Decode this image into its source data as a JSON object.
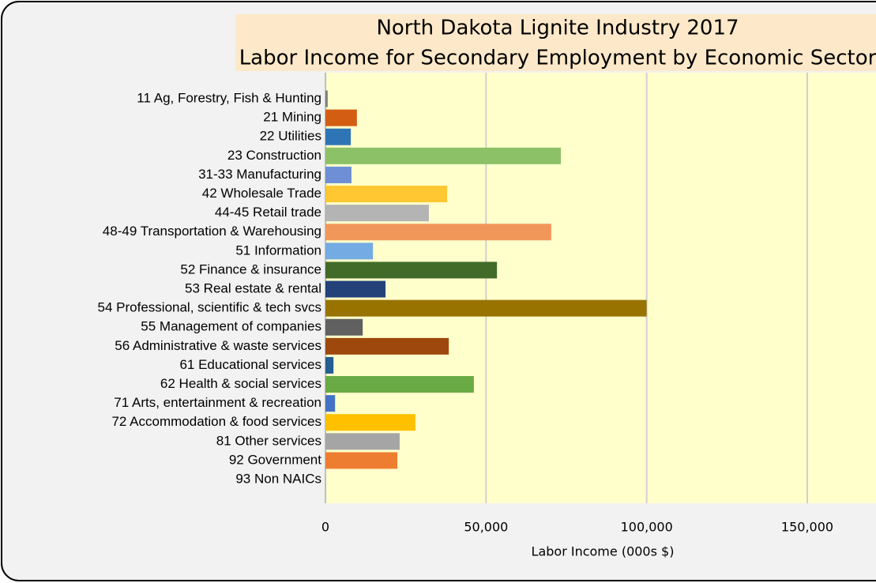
{
  "chart_data": {
    "type": "barh",
    "title": "North Dakota Lignite Industry 2017",
    "subtitle": "Labor Income for Secondary Employment by Economic Sector",
    "xlabel": "Labor Income (000s $)",
    "categories": [
      "11 Ag, Forestry, Fish & Hunting",
      "21 Mining",
      "22 Utilities",
      "23 Construction",
      "31-33 Manufacturing",
      "42 Wholesale Trade",
      "44-45 Retail trade",
      "48-49 Transportation & Warehousing",
      "51 Information",
      "52 Finance & insurance",
      "53 Real estate & rental",
      "54 Professional, scientific & tech svcs",
      "55 Management of companies",
      "56 Administrative & waste services",
      "61 Educational services",
      "62 Health & social services",
      "71 Arts, entertainment & recreation",
      "72 Accommodation & food services",
      "81 Other services",
      "92 Government",
      "93 Non NAICs"
    ],
    "values": [
      700,
      9800,
      7900,
      73300,
      8100,
      37900,
      32200,
      70300,
      14800,
      53400,
      18700,
      100000,
      11600,
      38400,
      2500,
      46200,
      3000,
      28000,
      23100,
      22400,
      0
    ],
    "colors": [
      "#7f7f7f",
      "#d35e13",
      "#2e75b6",
      "#8cc168",
      "#6e8fd6",
      "#ffc832",
      "#b4b4b4",
      "#f1975a",
      "#74abe2",
      "#426b29",
      "#23427a",
      "#987300",
      "#606060",
      "#9e480e",
      "#255e91",
      "#6aaa45",
      "#4472c4",
      "#ffc000",
      "#a5a5a5",
      "#ed7d31",
      "#5b9bd5"
    ],
    "xlim": [
      0,
      150000
    ],
    "xticks": [
      0,
      {
        "value": 50000,
        "label": "50,000"
      },
      {
        "value": 100000,
        "label": "100,000"
      },
      {
        "value": 150000,
        "label": "150,000"
      }
    ],
    "grid": true
  }
}
